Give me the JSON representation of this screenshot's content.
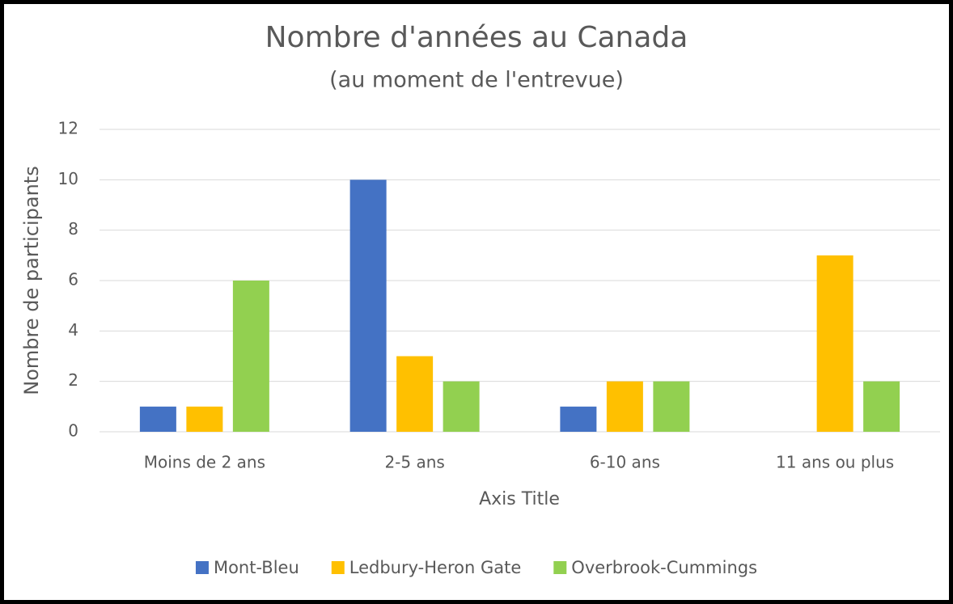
{
  "chart_data": {
    "type": "bar",
    "title": "Nombre d'années au Canada",
    "subtitle": "(au moment de l'entrevue)",
    "x_label": "Axis Title",
    "y_label": "Nombre de participants",
    "categories": [
      "Moins de 2 ans",
      "2-5 ans",
      "6-10 ans",
      "11 ans ou plus"
    ],
    "series": [
      {
        "name": "Mont-Bleu",
        "color": "#4472c4",
        "values": [
          1,
          10,
          1,
          0
        ]
      },
      {
        "name": "Ledbury-Heron Gate",
        "color": "#ffc000",
        "values": [
          1,
          3,
          2,
          7
        ]
      },
      {
        "name": "Overbrook-Cummings",
        "color": "#92d050",
        "values": [
          6,
          2,
          2,
          2
        ]
      }
    ],
    "ylim": [
      0,
      12
    ],
    "yticks": [
      0,
      2,
      4,
      6,
      8,
      10,
      12
    ],
    "grid": true,
    "legend": "bottom"
  }
}
